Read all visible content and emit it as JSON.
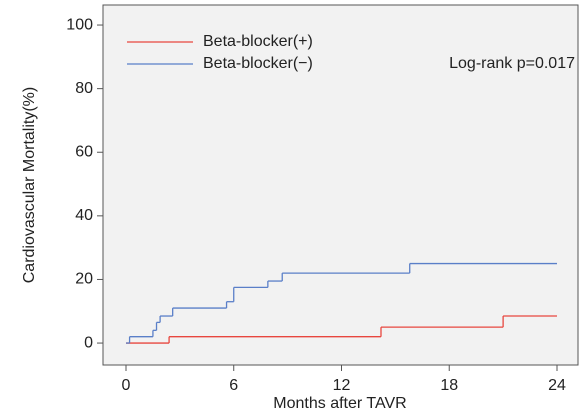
{
  "chart_data": {
    "type": "step",
    "ylabel": "Cardiovascular Mortality(%)",
    "xlabel": "Months after TAVR",
    "annotation": "Log-rank p=0.017",
    "xlim": [
      -1.28,
      25.17
    ],
    "ylim": [
      -6.9,
      106.3
    ],
    "xticks": [
      0,
      6,
      12,
      18,
      24
    ],
    "yticks": [
      0,
      20,
      40,
      60,
      80,
      100
    ],
    "legend": "upper left",
    "series": [
      {
        "name": "Beta-blocker(+)",
        "color": "#e8473f",
        "x": [
          0,
          2.4,
          14.2,
          21,
          24
        ],
        "values": [
          0,
          2,
          5,
          8.5,
          8.5
        ]
      },
      {
        "name": "Beta-blocker(−)",
        "color": "#5a7fc8",
        "x": [
          0,
          0.2,
          1.5,
          1.7,
          1.9,
          2.6,
          5.6,
          6,
          7.9,
          8.7,
          15.8,
          24
        ],
        "values": [
          0,
          2,
          4,
          6.5,
          8.5,
          11,
          13,
          17.5,
          19.5,
          22,
          25,
          25
        ]
      }
    ]
  }
}
